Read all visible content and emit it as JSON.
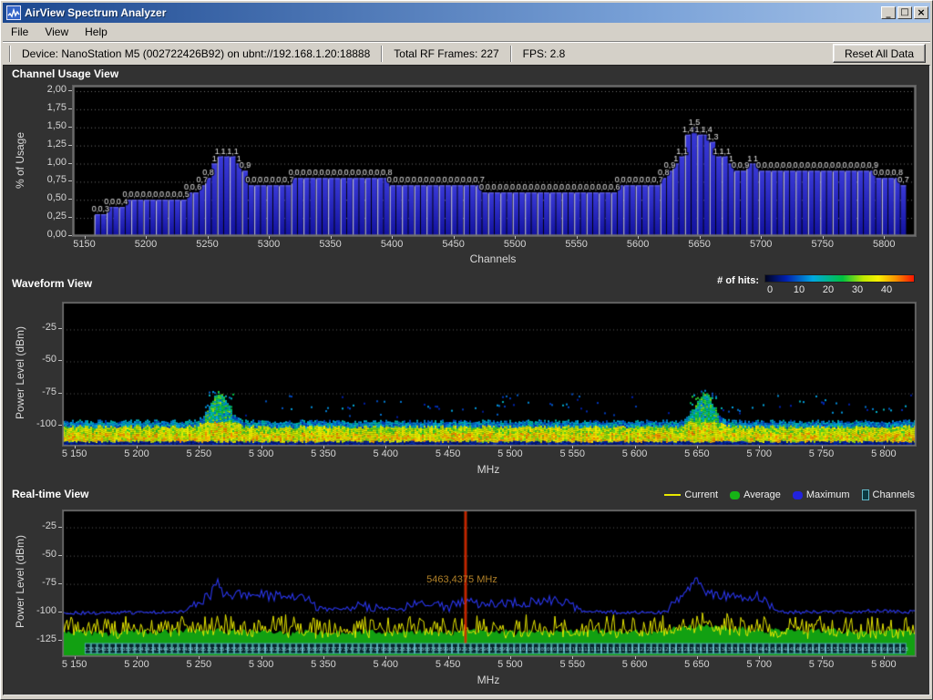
{
  "window": {
    "title": "AirView Spectrum Analyzer",
    "controls": {
      "minimize": "_",
      "maximize": "□",
      "close": "×"
    }
  },
  "menu": {
    "items": [
      {
        "label": "File"
      },
      {
        "label": "View"
      },
      {
        "label": "Help"
      }
    ]
  },
  "toolbar": {
    "device_info": "Device: NanoStation M5 (002722426B92) on ubnt://192.168.1.20:18888",
    "total_frames": "Total RF Frames: 227",
    "fps": "FPS: 2.8",
    "reset_button": "Reset All Data"
  },
  "colors": {
    "titlebar_left": "#1b478f",
    "titlebar_right": "#a8c4e8",
    "chrome": "#d4d0c8",
    "client_bg": "#323232",
    "plot_bg": "#000000",
    "tick_text": "#d4d4d4",
    "bar_blue": "#2020c0",
    "current_yellow": "#e8e800",
    "average_green": "#12a012",
    "maximum_blue": "#2a36ee",
    "channel_teal": "#55b0c2",
    "cursor_red": "#dd2200",
    "cursor_label": "#b08028"
  },
  "chart_data": [
    {
      "id": "channel-usage",
      "type": "bar",
      "panel_title": "Channel Usage View",
      "xlabel": "Channels",
      "ylabel": "% of Usage",
      "ylim": [
        0,
        2
      ],
      "ytick_labels": [
        "2,00",
        "1,75",
        "1,50",
        "1,25",
        "1,00",
        "0,75",
        "0,50",
        "0,25",
        "0,00"
      ],
      "ytick_values": [
        2,
        1.75,
        1.5,
        1.25,
        1,
        0.75,
        0.5,
        0.25,
        0
      ],
      "xtick_mhz": [
        5150,
        5200,
        5250,
        5300,
        5350,
        5400,
        5450,
        5500,
        5550,
        5600,
        5650,
        5700,
        5750,
        5800
      ],
      "xtick_labels": [
        "5150",
        "5200",
        "5250",
        "5300",
        "5350",
        "5400",
        "5450",
        "5500",
        "5550",
        "5600",
        "5650",
        "5700",
        "5750",
        "5800"
      ],
      "xlim_mhz": [
        5140,
        5825
      ],
      "bar_start_mhz": 5160,
      "bar_step_mhz": 5,
      "values": [
        0.3,
        0.3,
        0.4,
        0.4,
        0.4,
        0.5,
        0.5,
        0.5,
        0.5,
        0.5,
        0.5,
        0.5,
        0.5,
        0.5,
        0.5,
        0.6,
        0.6,
        0.7,
        0.8,
        1,
        1.1,
        1.1,
        1.1,
        1,
        0.9,
        0.7,
        0.7,
        0.7,
        0.7,
        0.7,
        0.7,
        0.7,
        0.8,
        0.8,
        0.8,
        0.8,
        0.8,
        0.8,
        0.8,
        0.8,
        0.8,
        0.8,
        0.8,
        0.8,
        0.8,
        0.8,
        0.8,
        0.8,
        0.7,
        0.7,
        0.7,
        0.7,
        0.7,
        0.7,
        0.7,
        0.7,
        0.7,
        0.7,
        0.7,
        0.7,
        0.7,
        0.7,
        0.7,
        0.6,
        0.6,
        0.6,
        0.6,
        0.6,
        0.6,
        0.6,
        0.6,
        0.6,
        0.6,
        0.6,
        0.6,
        0.6,
        0.6,
        0.6,
        0.6,
        0.6,
        0.6,
        0.6,
        0.6,
        0.6,
        0.6,
        0.7,
        0.7,
        0.7,
        0.7,
        0.7,
        0.7,
        0.7,
        0.8,
        0.9,
        1,
        1.1,
        1.4,
        1.5,
        1.4,
        1.4,
        1.3,
        1.1,
        1.1,
        1,
        0.9,
        0.9,
        1,
        1,
        0.9,
        0.9,
        0.9,
        0.9,
        0.9,
        0.9,
        0.9,
        0.9,
        0.9,
        0.9,
        0.9,
        0.9,
        0.9,
        0.9,
        0.9,
        0.9,
        0.9,
        0.9,
        0.9,
        0.8,
        0.8,
        0.8,
        0.8,
        0.7
      ]
    },
    {
      "id": "waveform",
      "type": "heatmap",
      "panel_title": "Waveform View",
      "xlabel": "MHz",
      "ylabel": "Power Level (dBm)",
      "ylim_dbm": [
        -116,
        -4
      ],
      "ytick_dbm": [
        -25,
        -50,
        -75,
        -100
      ],
      "ytick_labels": [
        "-25",
        "-50",
        "-75",
        "-100"
      ],
      "xtick_mhz": [
        5150,
        5200,
        5250,
        5300,
        5350,
        5400,
        5450,
        5500,
        5550,
        5600,
        5650,
        5700,
        5750,
        5800
      ],
      "xtick_labels": [
        "5 150",
        "5 200",
        "5 250",
        "5 300",
        "5 350",
        "5 400",
        "5 450",
        "5 500",
        "5 550",
        "5 600",
        "5 650",
        "5 700",
        "5 750",
        "5 800"
      ],
      "xlim_mhz": [
        5140,
        5825
      ],
      "colorbar": {
        "label": "# of hits:",
        "tick_labels": [
          "0",
          "10",
          "20",
          "30",
          "40"
        ],
        "gradient": [
          "#00041f",
          "#0020b0",
          "#00a8e0",
          "#00c040",
          "#bfe800",
          "#f8f000",
          "#f89000",
          "#f81400"
        ]
      },
      "noise_floor_band_dbm": [
        -113,
        -97
      ],
      "peaks": [
        {
          "mhz": 5265,
          "top_dbm": -74
        },
        {
          "mhz": 5655,
          "top_dbm": -75
        }
      ]
    },
    {
      "id": "realtime",
      "type": "line",
      "panel_title": "Real-time View",
      "xlabel": "MHz",
      "ylabel": "Power Level (dBm)",
      "ylim_dbm": [
        -139,
        -10
      ],
      "ytick_dbm": [
        -25,
        -50,
        -75,
        -100,
        -125
      ],
      "ytick_labels": [
        "-25",
        "-50",
        "-75",
        "-100",
        "-125"
      ],
      "xtick_mhz": [
        5150,
        5200,
        5250,
        5300,
        5350,
        5400,
        5450,
        5500,
        5550,
        5600,
        5650,
        5700,
        5750,
        5800
      ],
      "xtick_labels": [
        "5 150",
        "5 200",
        "5 250",
        "5 300",
        "5 350",
        "5 400",
        "5 450",
        "5 500",
        "5 550",
        "5 600",
        "5 650",
        "5 700",
        "5 750",
        "5 800"
      ],
      "xlim_mhz": [
        5140,
        5825
      ],
      "legend": [
        {
          "label": "Current",
          "color": "#e8e800",
          "swatch": "line"
        },
        {
          "label": "Average",
          "color": "#16b416",
          "swatch": "blob"
        },
        {
          "label": "Maximum",
          "color": "#2222dd",
          "swatch": "blob"
        },
        {
          "label": "Channels",
          "color": "#55b0c2",
          "swatch": "square"
        }
      ],
      "cursor": {
        "mhz": 5463.4375,
        "label": "5463,4375 MHz"
      },
      "series": {
        "maximum": {
          "color": "#2a36ee",
          "envelope": [
            [
              5140,
              -101
            ],
            [
              5235,
              -100
            ],
            [
              5246,
              -93
            ],
            [
              5258,
              -86
            ],
            [
              5264,
              -72
            ],
            [
              5270,
              -85
            ],
            [
              5292,
              -84
            ],
            [
              5310,
              -86
            ],
            [
              5332,
              -86
            ],
            [
              5342,
              -94
            ],
            [
              5352,
              -98
            ],
            [
              5380,
              -95
            ],
            [
              5405,
              -97
            ],
            [
              5430,
              -93
            ],
            [
              5448,
              -96
            ],
            [
              5462,
              -91
            ],
            [
              5478,
              -94
            ],
            [
              5505,
              -92
            ],
            [
              5532,
              -90
            ],
            [
              5548,
              -93
            ],
            [
              5558,
              -99
            ],
            [
              5580,
              -100
            ],
            [
              5625,
              -100
            ],
            [
              5634,
              -88
            ],
            [
              5640,
              -82
            ],
            [
              5648,
              -71
            ],
            [
              5654,
              -80
            ],
            [
              5662,
              -84
            ],
            [
              5680,
              -87
            ],
            [
              5698,
              -85
            ],
            [
              5706,
              -93
            ],
            [
              5714,
              -100
            ],
            [
              5755,
              -100
            ],
            [
              5790,
              -99
            ],
            [
              5825,
              -100
            ]
          ]
        },
        "current": {
          "color": "#e8e800",
          "base_dbm": -117,
          "spike_db": 16
        },
        "average": {
          "color": "#12a012",
          "envelope": [
            [
              5140,
              -117
            ],
            [
              5250,
              -115
            ],
            [
              5320,
              -117
            ],
            [
              5460,
              -116
            ],
            [
              5620,
              -116
            ],
            [
              5652,
              -111
            ],
            [
              5700,
              -115
            ],
            [
              5825,
              -116
            ]
          ]
        }
      },
      "channels_row": {
        "start_mhz": 5160,
        "step_mhz": 5,
        "end_mhz": 5815
      }
    }
  ]
}
